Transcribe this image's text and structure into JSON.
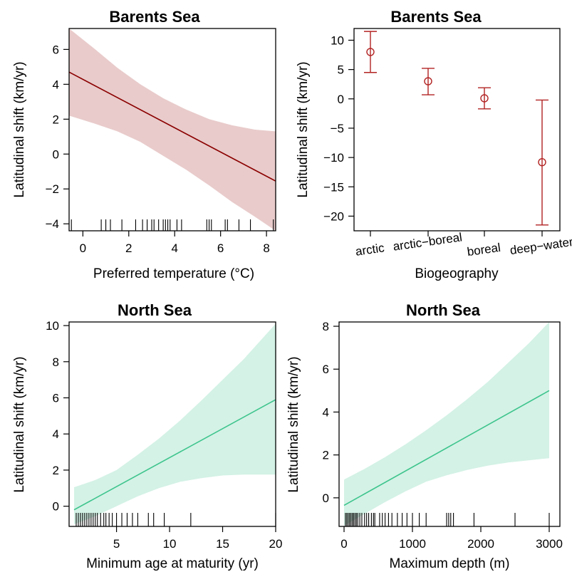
{
  "colors": {
    "barents_line": "#8b0000",
    "barents_band": "#dba9a9",
    "barents_band_opacity": 0.6,
    "north_line": "#3cc48c",
    "north_band": "#c9efe0",
    "north_band_opacity": 0.8,
    "errorbar": "#b22222"
  },
  "chart_data": [
    {
      "id": "p1",
      "type": "line",
      "title": "Barents Sea",
      "xlabel": "Preferred temperature (°C)",
      "ylabel": "Latitudinal shift (km/yr)",
      "xlim": [
        -0.6,
        8.4
      ],
      "ylim": [
        -4.4,
        7.2
      ],
      "xticks": [
        0,
        2,
        4,
        6,
        8
      ],
      "yticks": [
        -4,
        -2,
        0,
        2,
        4,
        6
      ],
      "fit": {
        "x": [
          -0.6,
          8.4
        ],
        "y": [
          4.7,
          -1.55
        ]
      },
      "band": {
        "x": [
          -0.6,
          0.5,
          1.5,
          2.5,
          3.5,
          4.5,
          5.5,
          6.5,
          7.5,
          8.4
        ],
        "lower": [
          2.2,
          1.75,
          1.3,
          0.7,
          -0.1,
          -0.9,
          -1.8,
          -2.75,
          -3.6,
          -4.4
        ],
        "upper": [
          7.2,
          6.05,
          4.95,
          4.0,
          3.2,
          2.55,
          2.0,
          1.65,
          1.4,
          1.3
        ]
      },
      "rug": [
        -0.5,
        0.8,
        1.0,
        1.2,
        1.7,
        2.3,
        2.6,
        2.8,
        3.0,
        3.1,
        3.3,
        3.5,
        3.6,
        3.7,
        3.8,
        4.1,
        4.3,
        5.4,
        5.5,
        5.6,
        6.2,
        6.3,
        6.8,
        7.3,
        8.3
      ]
    },
    {
      "id": "p2",
      "type": "scatter",
      "title": "Barents Sea",
      "xlabel": "Biogeography",
      "ylabel": "Latitudinal shift (km/yr)",
      "ylim": [
        -22.5,
        12.0
      ],
      "yticks": [
        -20,
        -15,
        -10,
        -5,
        0,
        5,
        10
      ],
      "categories": [
        "arctic",
        "arctic−boreal",
        "boreal",
        "deep−water"
      ],
      "estimate": [
        8.0,
        3.0,
        0.1,
        -10.8
      ],
      "lower": [
        4.5,
        0.7,
        -1.7,
        -21.5
      ],
      "upper": [
        11.5,
        5.2,
        1.9,
        -0.2
      ]
    },
    {
      "id": "p3",
      "type": "line",
      "title": "North Sea",
      "xlabel": "Minimum age at maturity (yr)",
      "ylabel": "Latitudinal shift (km/yr)",
      "xlim": [
        1.0,
        20.0
      ],
      "ylim": [
        -1.0,
        10.2
      ],
      "xticks": [
        5,
        10,
        15,
        20
      ],
      "yticks": [
        0,
        2,
        4,
        6,
        8,
        10
      ],
      "fit": {
        "x": [
          1.0,
          20.0
        ],
        "y": [
          -0.2,
          5.9
        ]
      },
      "band": {
        "x": [
          1.0,
          3.0,
          5.0,
          7.0,
          9.0,
          11.0,
          13.0,
          15.0,
          17.0,
          20.0
        ],
        "lower": [
          -1.0,
          -0.55,
          0.0,
          0.55,
          1.0,
          1.35,
          1.55,
          1.7,
          1.75,
          1.75
        ],
        "upper": [
          1.05,
          1.45,
          2.0,
          2.85,
          3.75,
          4.75,
          5.85,
          7.0,
          8.15,
          10.1
        ]
      },
      "rug": [
        1.2,
        1.4,
        1.6,
        1.8,
        2.0,
        2.2,
        2.4,
        2.6,
        2.8,
        3.0,
        3.2,
        3.5,
        3.8,
        4.0,
        4.3,
        4.6,
        5.0,
        5.5,
        6.0,
        6.5,
        7.0,
        8.0,
        8.5,
        9.5,
        12.0,
        20.0
      ]
    },
    {
      "id": "p4",
      "type": "line",
      "title": "North Sea",
      "xlabel": "Maximum depth (m)",
      "ylabel": "Latitudinal shift (km/yr)",
      "xlim": [
        0,
        3000
      ],
      "ylim": [
        -1.3,
        8.2
      ],
      "xticks": [
        0,
        1000,
        2000,
        3000
      ],
      "yticks": [
        0,
        2,
        4,
        6,
        8
      ],
      "fit": {
        "x": [
          0,
          3000
        ],
        "y": [
          -0.35,
          5.0
        ]
      },
      "band": {
        "x": [
          0,
          300,
          600,
          900,
          1200,
          1500,
          1800,
          2100,
          2400,
          2700,
          3000
        ],
        "lower": [
          -1.3,
          -0.75,
          -0.2,
          0.3,
          0.75,
          1.05,
          1.3,
          1.5,
          1.65,
          1.75,
          1.85
        ],
        "upper": [
          0.85,
          1.35,
          1.9,
          2.5,
          3.15,
          3.85,
          4.6,
          5.4,
          6.3,
          7.2,
          8.2
        ]
      },
      "rug": [
        20,
        40,
        60,
        80,
        100,
        120,
        140,
        160,
        180,
        200,
        230,
        260,
        300,
        330,
        360,
        400,
        430,
        450,
        520,
        560,
        600,
        650,
        700,
        780,
        850,
        920,
        1000,
        1100,
        1200,
        1500,
        1530,
        1560,
        1600,
        1900,
        2500,
        3000
      ]
    }
  ]
}
